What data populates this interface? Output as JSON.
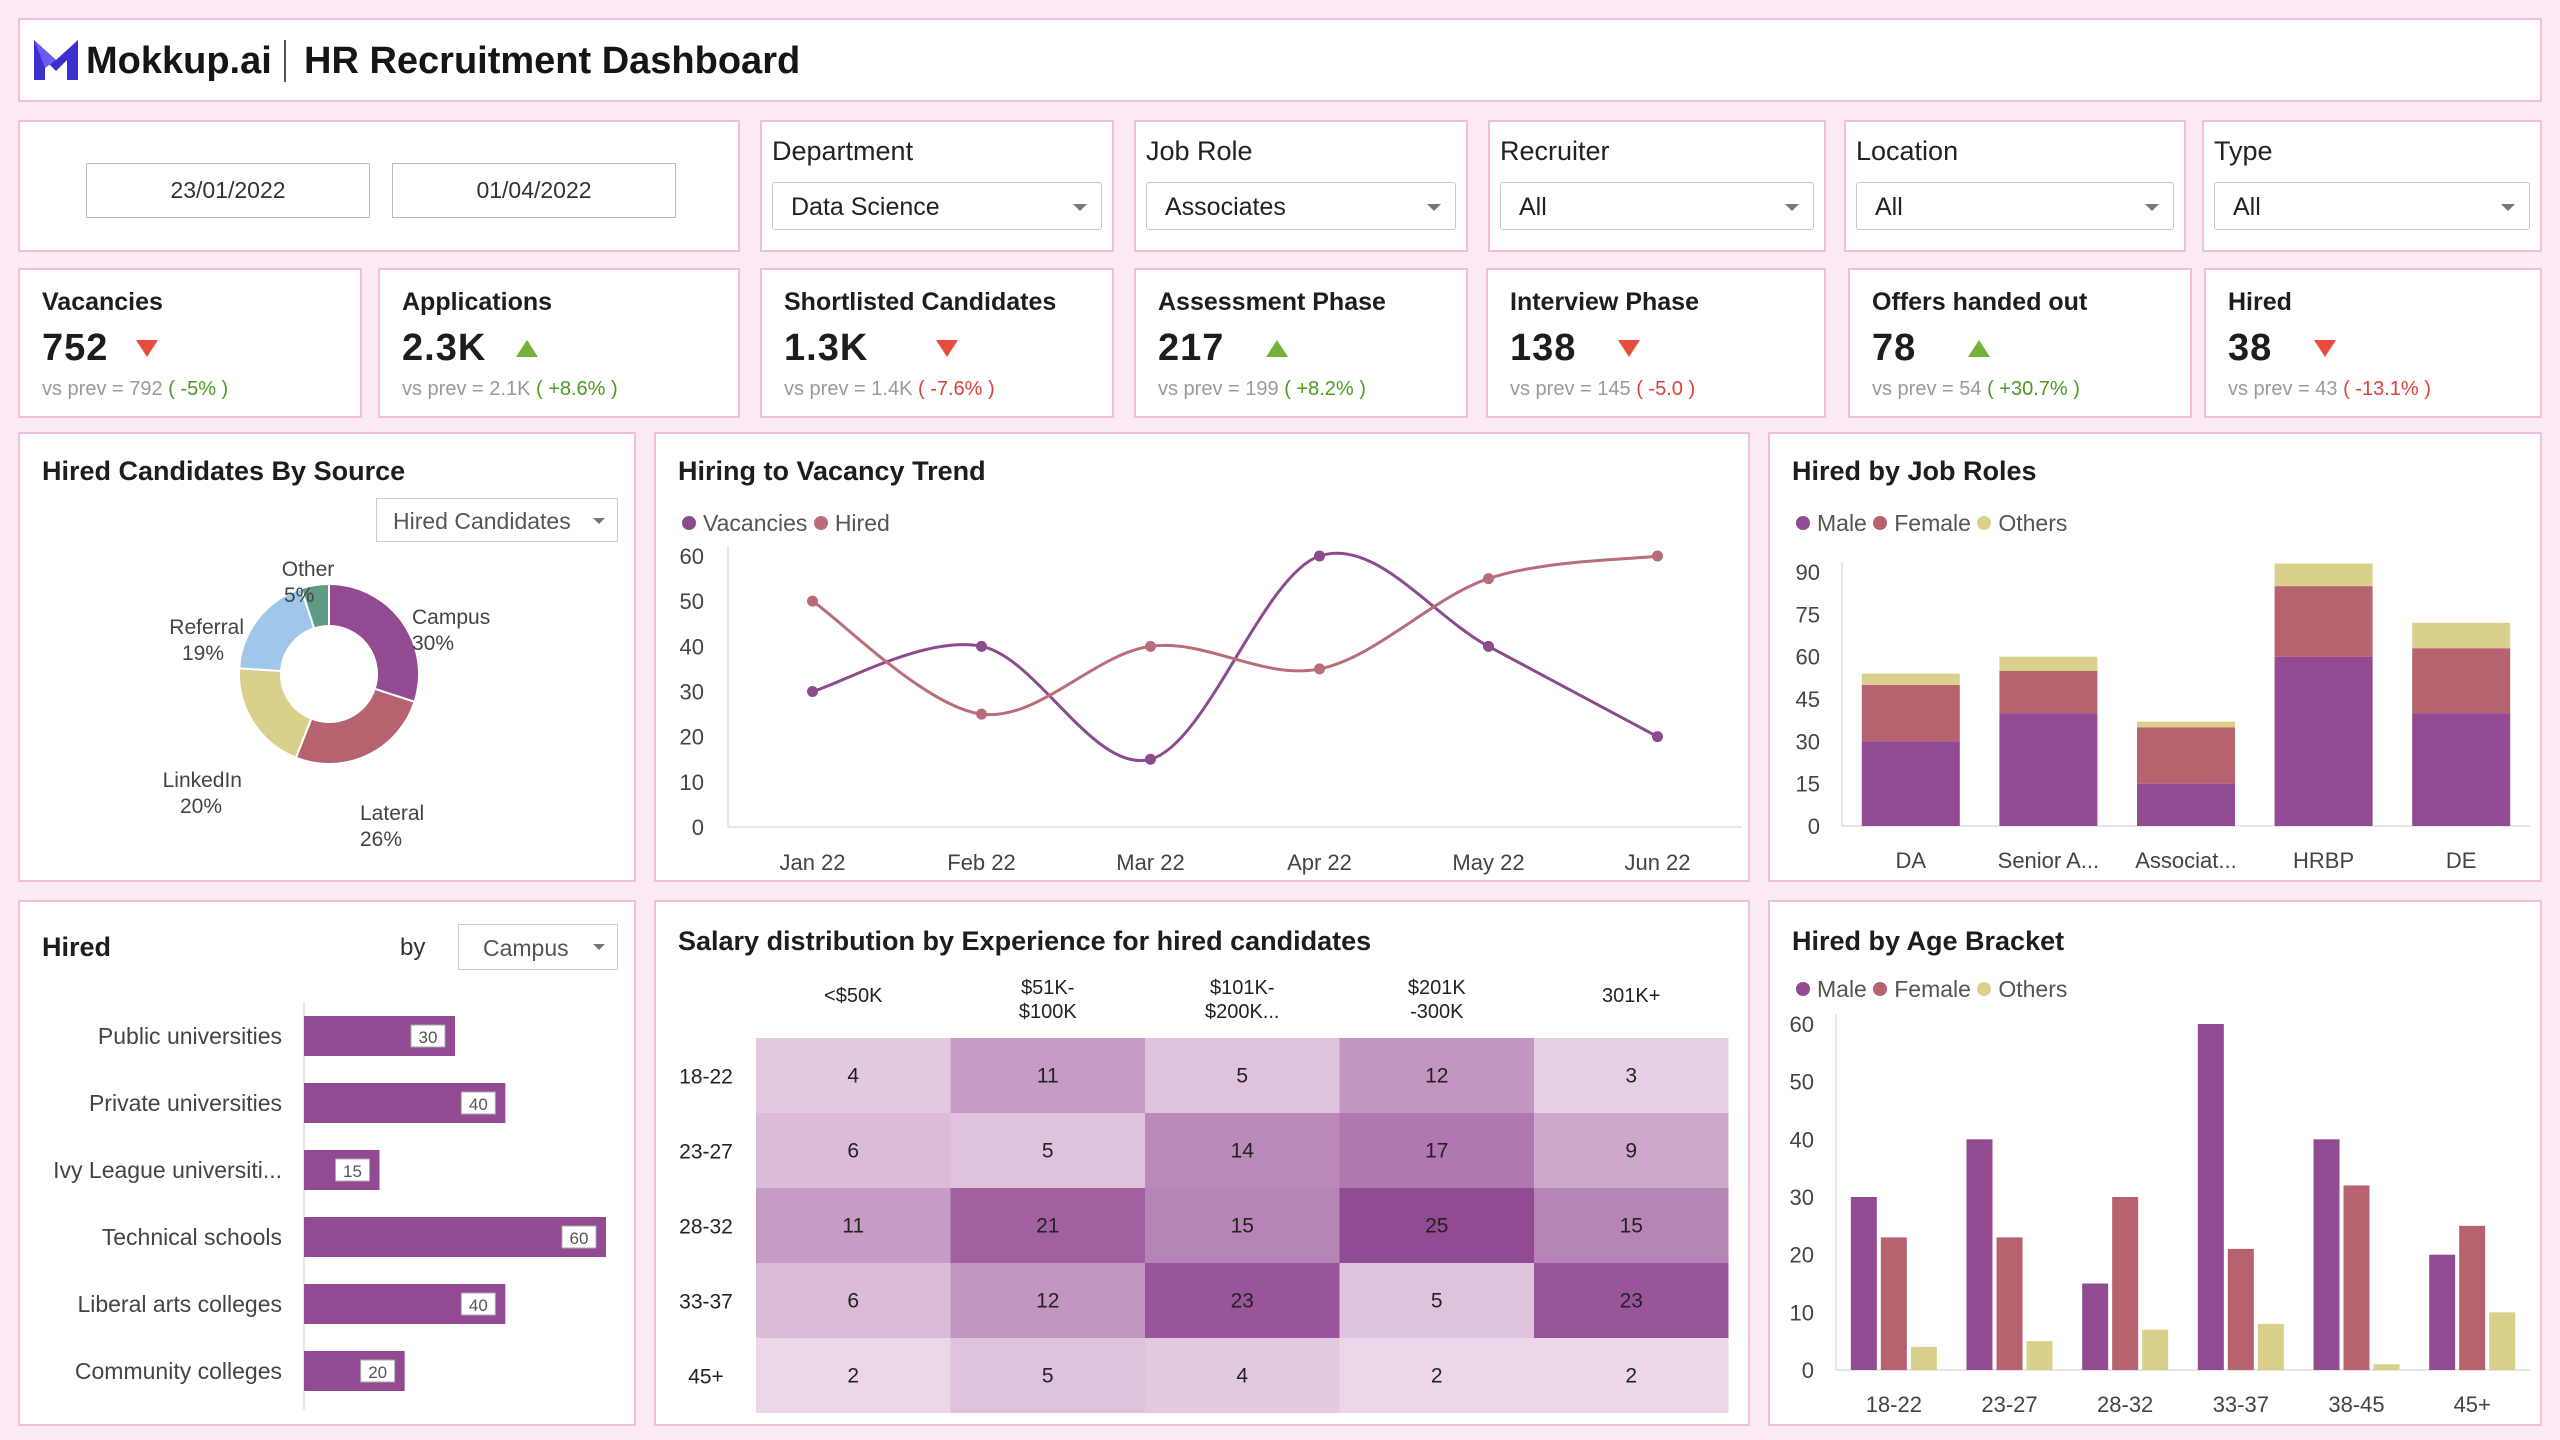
{
  "header": {
    "brand": "Mokkup.ai",
    "title": "HR Recruitment Dashboard"
  },
  "filters": {
    "start_date": "23/01/2022",
    "end_date": "01/04/2022",
    "department": {
      "label": "Department",
      "value": "Data Science"
    },
    "job_role": {
      "label": "Job Role",
      "value": "Associates"
    },
    "recruiter": {
      "label": "Recruiter",
      "value": "All"
    },
    "location": {
      "label": "Location",
      "value": "All"
    },
    "type": {
      "label": "Type",
      "value": "All"
    }
  },
  "kpis": [
    {
      "label": "Vacancies",
      "value": "752",
      "dir": "down",
      "prev_label": "vs prev =",
      "prev": "792",
      "change": "( -5% )",
      "change_dir": "up"
    },
    {
      "label": "Applications",
      "value": "2.3K",
      "dir": "up",
      "prev_label": "vs prev =",
      "prev": "2.1K",
      "change": "( +8.6% )",
      "change_dir": "up"
    },
    {
      "label": "Shortlisted Candidates",
      "value": "1.3K",
      "dir": "down",
      "prev_label": "vs prev =",
      "prev": "1.4K",
      "change": "( -7.6% )",
      "change_dir": "down"
    },
    {
      "label": "Assessment Phase",
      "value": "217",
      "dir": "up",
      "prev_label": "vs prev =",
      "prev": "199",
      "change": "( +8.2% )",
      "change_dir": "up"
    },
    {
      "label": "Interview Phase",
      "value": "138",
      "dir": "down",
      "prev_label": "vs prev =",
      "prev": "145",
      "change": "( -5.0 )",
      "change_dir": "down"
    },
    {
      "label": "Offers handed out",
      "value": "78",
      "dir": "up",
      "prev_label": "vs prev =",
      "prev": "54",
      "change": "( +30.7% )",
      "change_dir": "up"
    },
    {
      "label": "Hired",
      "value": "38",
      "dir": "down",
      "prev_label": "vs prev =",
      "prev": "43",
      "change": "( -13.1% )",
      "change_dir": "down"
    }
  ],
  "source": {
    "title": "Hired Candidates By Source",
    "dropdown": "Hired Candidates"
  },
  "trend": {
    "title": "Hiring to Vacancy Trend"
  },
  "roles": {
    "title": "Hired by Job Roles"
  },
  "hired_by": {
    "title": "Hired",
    "by_label": "by",
    "dropdown": "Campus"
  },
  "salary": {
    "title": "Salary distribution by Experience for hired candidates"
  },
  "age": {
    "title": "Hired by Age Bracket"
  },
  "colors": {
    "male": "#924a92",
    "female": "#b7636f",
    "others": "#d8d08b",
    "vacancies": "#8c4a8f",
    "hired": "#b86d79"
  },
  "chart_data": [
    {
      "id": "source",
      "type": "pie",
      "title": "Hired Candidates By Source",
      "labels": [
        "Campus",
        "Lateral",
        "LinkedIn",
        "Referral",
        "Other"
      ],
      "values": [
        30,
        26,
        20,
        19,
        5
      ],
      "value_labels": [
        "30%",
        "26%",
        "20%",
        "19%",
        "5%"
      ],
      "colors": [
        "#924a92",
        "#b7636f",
        "#d8d08b",
        "#9fc7ec",
        "#5f9b84"
      ]
    },
    {
      "id": "trend",
      "type": "line",
      "title": "Hiring to Vacancy Trend",
      "categories": [
        "Jan 22",
        "Feb 22",
        "Mar 22",
        "Apr 22",
        "May 22",
        "Jun 22"
      ],
      "series": [
        {
          "name": "Vacancies",
          "values": [
            30,
            40,
            15,
            60,
            40,
            20
          ]
        },
        {
          "name": "Hired",
          "values": [
            50,
            25,
            40,
            35,
            55,
            60
          ]
        }
      ],
      "yticks": [
        0,
        10,
        20,
        30,
        40,
        50,
        60
      ],
      "ylim": [
        0,
        60
      ]
    },
    {
      "id": "roles",
      "type": "bar",
      "stacked": true,
      "title": "Hired by Job Roles",
      "categories": [
        "DA",
        "Senior A...",
        "Associat...",
        "HRBP",
        "DE"
      ],
      "series": [
        {
          "name": "Male",
          "values": [
            30,
            40,
            15,
            60,
            40
          ]
        },
        {
          "name": "Female",
          "values": [
            20,
            15,
            20,
            25,
            23
          ]
        },
        {
          "name": "Others",
          "values": [
            4,
            5,
            2,
            8,
            9
          ]
        }
      ],
      "yticks": [
        0,
        15,
        30,
        45,
        60,
        75,
        90
      ],
      "ylim": [
        0,
        90
      ]
    },
    {
      "id": "hired_by",
      "type": "bar",
      "orientation": "horizontal",
      "title": "Hired by Campus",
      "categories": [
        "Public universities",
        "Private universities",
        "Ivy League universiti...",
        "Technical schools",
        "Liberal arts colleges",
        "Community colleges"
      ],
      "values": [
        30,
        40,
        15,
        60,
        40,
        20
      ],
      "xlim": [
        0,
        60
      ]
    },
    {
      "id": "salary",
      "type": "heatmap",
      "title": "Salary distribution by Experience for hired candidates",
      "columns": [
        "<$50K",
        "$51K-\n$100K",
        "$101K-\n$200K...",
        "$201K\n-300K",
        "301K+"
      ],
      "rows": [
        "18-22",
        "23-27",
        "28-32",
        "33-37",
        "45+"
      ],
      "values": [
        [
          4,
          11,
          5,
          12,
          3
        ],
        [
          6,
          5,
          14,
          17,
          9
        ],
        [
          11,
          21,
          15,
          25,
          15
        ],
        [
          6,
          12,
          23,
          5,
          23
        ],
        [
          2,
          5,
          4,
          2,
          2
        ]
      ]
    },
    {
      "id": "age",
      "type": "bar",
      "title": "Hired by Age Bracket",
      "categories": [
        "18-22",
        "23-27",
        "28-32",
        "33-37",
        "38-45",
        "45+"
      ],
      "series": [
        {
          "name": "Male",
          "values": [
            30,
            40,
            15,
            60,
            40,
            20
          ]
        },
        {
          "name": "Female",
          "values": [
            23,
            23,
            30,
            21,
            32,
            25
          ]
        },
        {
          "name": "Others",
          "values": [
            4,
            5,
            7,
            8,
            1,
            10
          ]
        }
      ],
      "yticks": [
        0,
        10,
        20,
        30,
        40,
        50,
        60
      ],
      "ylim": [
        0,
        60
      ]
    }
  ]
}
